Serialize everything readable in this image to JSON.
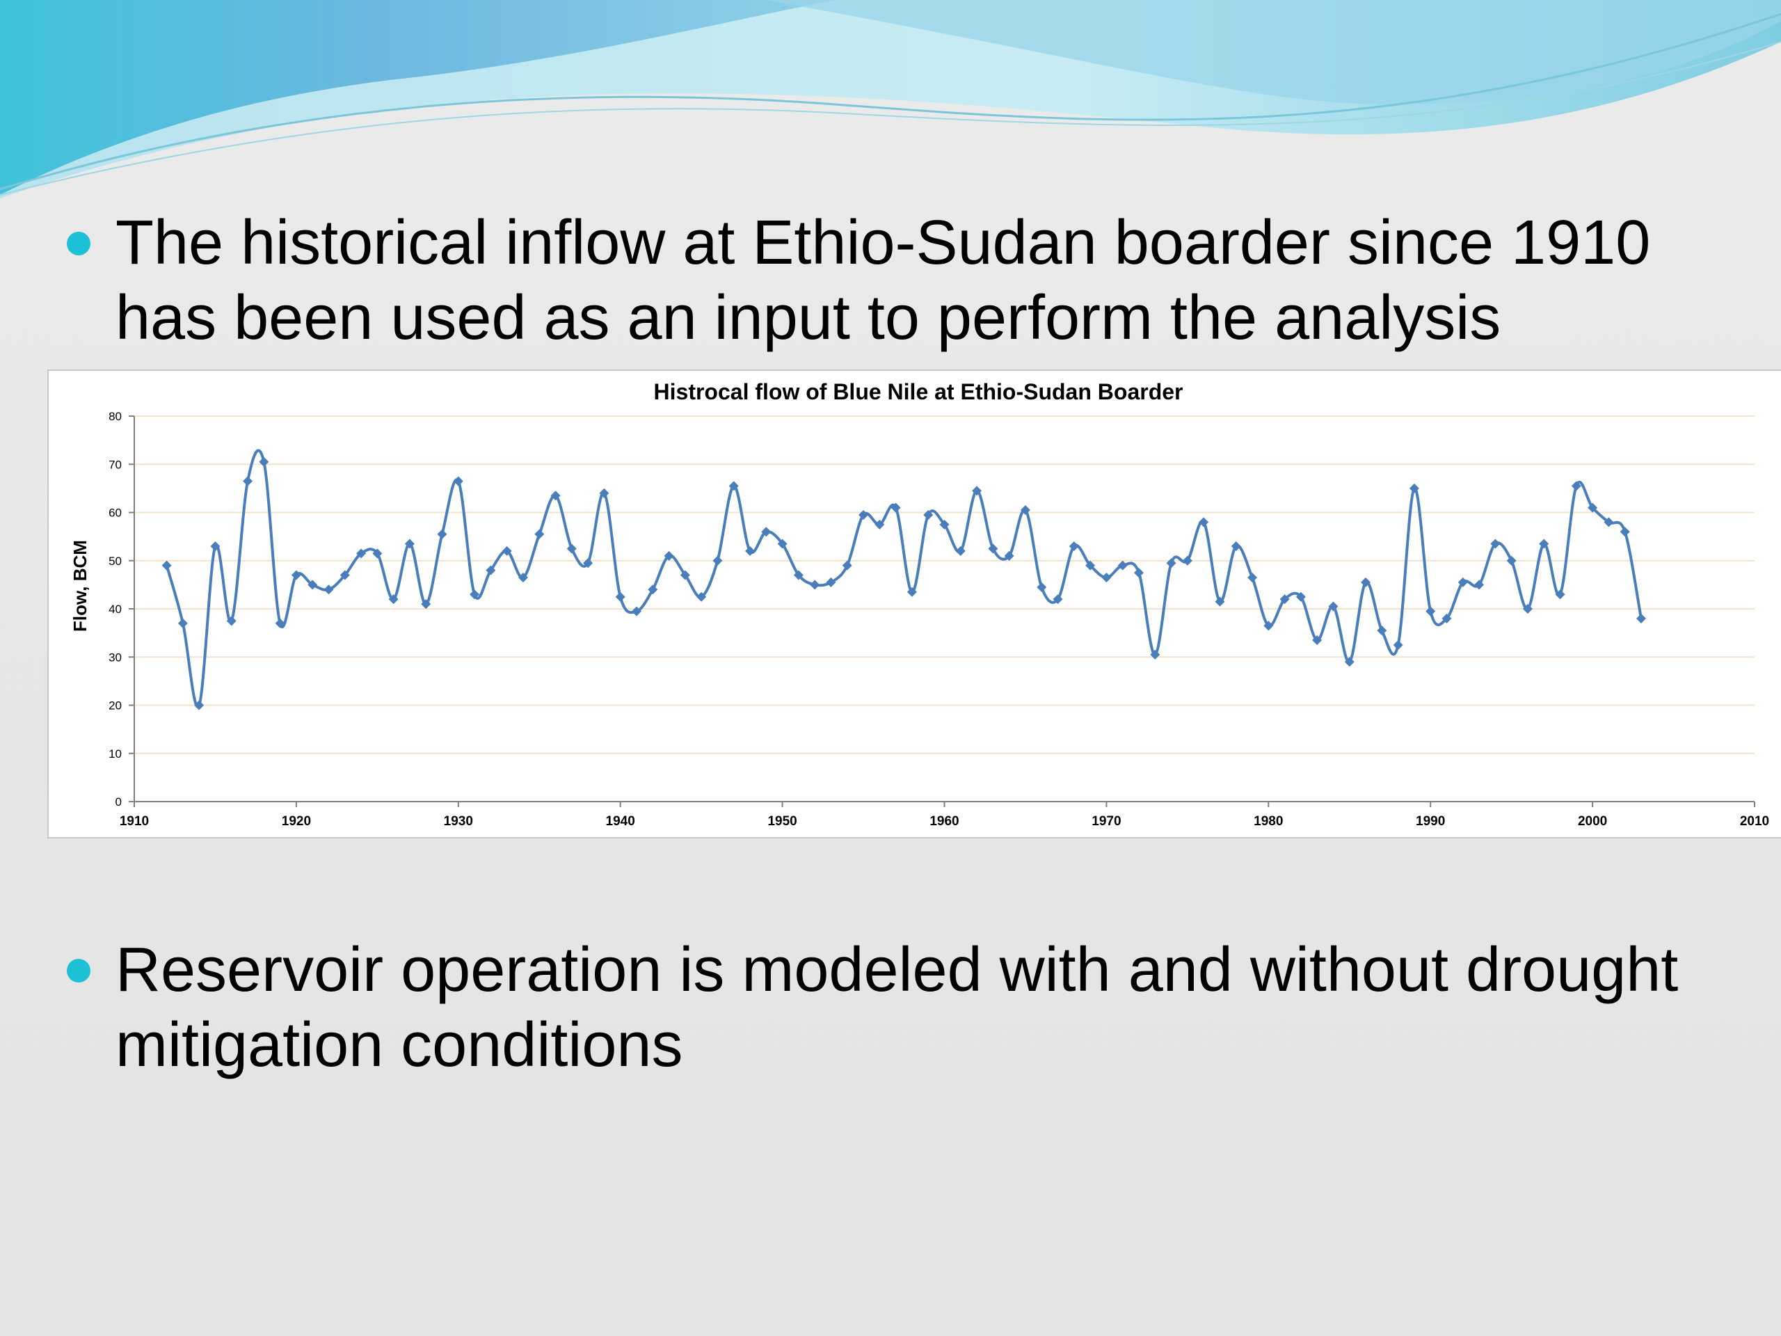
{
  "slide": {
    "bullets": [
      "The historical inflow at Ethio-Sudan boarder since 1910 has been used as an input to perform the analysis",
      "Reservoir operation is modeled with and without drought mitigation conditions"
    ],
    "colors": {
      "bullet": "#1cc1d6",
      "wave_light": "#a8dbea",
      "wave_dark": "#4ab6d4"
    }
  },
  "chart_data": {
    "type": "line",
    "title": "Histrocal flow of Blue Nile at Ethio-Sudan Boarder",
    "xlabel": "",
    "ylabel": "Flow, BCM",
    "xlim": [
      1910,
      2010
    ],
    "ylim": [
      0,
      80
    ],
    "x_ticks": [
      1910,
      1920,
      1930,
      1940,
      1950,
      1960,
      1970,
      1980,
      1990,
      2000,
      2010
    ],
    "y_ticks": [
      0,
      10,
      20,
      30,
      40,
      50,
      60,
      70,
      80
    ],
    "grid": "horizontal",
    "legend": "none",
    "series_color": "#4a7ebb",
    "x": [
      1912,
      1913,
      1914,
      1915,
      1916,
      1917,
      1918,
      1919,
      1920,
      1921,
      1922,
      1923,
      1924,
      1925,
      1926,
      1927,
      1928,
      1929,
      1930,
      1931,
      1932,
      1933,
      1934,
      1935,
      1936,
      1937,
      1938,
      1939,
      1940,
      1941,
      1942,
      1943,
      1944,
      1945,
      1946,
      1947,
      1948,
      1949,
      1950,
      1951,
      1952,
      1953,
      1954,
      1955,
      1956,
      1957,
      1958,
      1959,
      1960,
      1961,
      1962,
      1963,
      1964,
      1965,
      1966,
      1967,
      1968,
      1969,
      1970,
      1971,
      1972,
      1973,
      1974,
      1975,
      1976,
      1977,
      1978,
      1979,
      1980,
      1981,
      1982,
      1983,
      1984,
      1985,
      1986,
      1987,
      1988,
      1989,
      1990,
      1991,
      1992,
      1993,
      1994,
      1995,
      1996,
      1997,
      1998,
      1999,
      2000,
      2001,
      2002,
      2003
    ],
    "series": [
      {
        "values": [
          49,
          37,
          20,
          53,
          37.5,
          66.5,
          70.5,
          37,
          47,
          45,
          44,
          47,
          51.5,
          51.5,
          42,
          53.5,
          41,
          55.5,
          66.5,
          43,
          48,
          52,
          46.5,
          55.5,
          63.5,
          52.5,
          49.5,
          64,
          42.5,
          39.5,
          44,
          51,
          47,
          42.5,
          50,
          65.5,
          52,
          56,
          53.5,
          47,
          45,
          45.5,
          49,
          59.5,
          57.5,
          61,
          43.5,
          59.5,
          57.5,
          52,
          64.5,
          52.5,
          51,
          60.5,
          44.5,
          42,
          53,
          49,
          46.5,
          49,
          47.5,
          30.5,
          49.5,
          50,
          58,
          41.5,
          53,
          46.5,
          36.5,
          42,
          42.5,
          33.5,
          40.5,
          29,
          45.5,
          35.5,
          32.5,
          65,
          39.5,
          38,
          45.5,
          45,
          53.5,
          50,
          40,
          53.5,
          43,
          65.5,
          61,
          58,
          56,
          38
        ]
      }
    ]
  }
}
